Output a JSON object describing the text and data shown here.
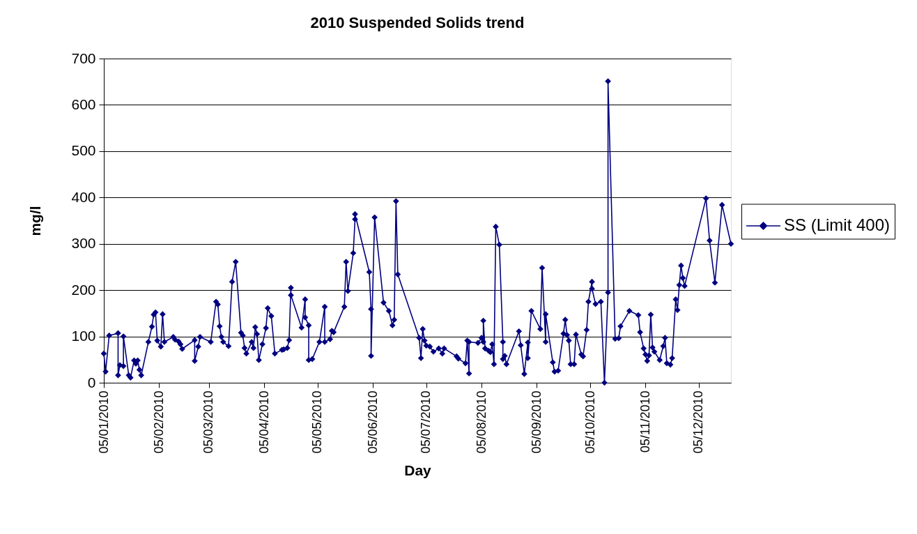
{
  "chart_data": {
    "type": "line",
    "title": "2010 Suspended Solids trend",
    "xlabel": "Day",
    "ylabel": "mg/l",
    "x": [
      "2010-01-05",
      "2010-01-06",
      "2010-01-08",
      "2010-01-13",
      "2010-01-13",
      "2010-01-14",
      "2010-01-16",
      "2010-01-16",
      "2010-01-19",
      "2010-01-20",
      "2010-01-22",
      "2010-01-23",
      "2010-01-24",
      "2010-01-25",
      "2010-01-26",
      "2010-01-30",
      "2010-02-01",
      "2010-02-02",
      "2010-02-03",
      "2010-02-04",
      "2010-02-06",
      "2010-02-07",
      "2010-02-08",
      "2010-02-13",
      "2010-02-14",
      "2010-02-16",
      "2010-02-17",
      "2010-02-18",
      "2010-02-25",
      "2010-02-25",
      "2010-02-27",
      "2010-02-28",
      "2010-03-06",
      "2010-03-09",
      "2010-03-10",
      "2010-03-11",
      "2010-03-12",
      "2010-03-13",
      "2010-03-16",
      "2010-03-18",
      "2010-03-20",
      "2010-03-23",
      "2010-03-24",
      "2010-03-25",
      "2010-03-26",
      "2010-03-29",
      "2010-03-30",
      "2010-03-31",
      "2010-04-01",
      "2010-04-02",
      "2010-04-04",
      "2010-04-06",
      "2010-04-07",
      "2010-04-09",
      "2010-04-11",
      "2010-04-15",
      "2010-04-16",
      "2010-04-18",
      "2010-04-19",
      "2010-04-20",
      "2010-04-20",
      "2010-04-26",
      "2010-04-28",
      "2010-04-28",
      "2010-04-30",
      "2010-04-30",
      "2010-05-02",
      "2010-05-06",
      "2010-05-09",
      "2010-05-09",
      "2010-05-12",
      "2010-05-13",
      "2010-05-14",
      "2010-05-20",
      "2010-05-21",
      "2010-05-22",
      "2010-05-25",
      "2010-05-26",
      "2010-05-26",
      "2010-06-03",
      "2010-06-04",
      "2010-06-04",
      "2010-06-06",
      "2010-06-11",
      "2010-06-14",
      "2010-06-16",
      "2010-06-17",
      "2010-06-18",
      "2010-06-19",
      "2010-07-01",
      "2010-07-02",
      "2010-07-03",
      "2010-07-04",
      "2010-07-05",
      "2010-07-07",
      "2010-07-09",
      "2010-07-12",
      "2010-07-14",
      "2010-07-15",
      "2010-07-22",
      "2010-07-23",
      "2010-07-27",
      "2010-07-28",
      "2010-07-29",
      "2010-07-29",
      "2010-08-03",
      "2010-08-05",
      "2010-08-06",
      "2010-08-06",
      "2010-08-07",
      "2010-08-09",
      "2010-08-10",
      "2010-08-11",
      "2010-08-12",
      "2010-08-13",
      "2010-08-15",
      "2010-08-17",
      "2010-08-17",
      "2010-08-18",
      "2010-08-19",
      "2010-08-26",
      "2010-08-27",
      "2010-08-29",
      "2010-08-31",
      "2010-08-31",
      "2010-09-02",
      "2010-09-07",
      "2010-09-08",
      "2010-09-10",
      "2010-09-10",
      "2010-09-14",
      "2010-09-15",
      "2010-09-17",
      "2010-09-20",
      "2010-09-21",
      "2010-09-22",
      "2010-09-23",
      "2010-09-24",
      "2010-09-26",
      "2010-09-27",
      "2010-09-30",
      "2010-10-01",
      "2010-10-03",
      "2010-10-04",
      "2010-10-06",
      "2010-10-06",
      "2010-10-08",
      "2010-10-11",
      "2010-10-13",
      "2010-10-15",
      "2010-10-15",
      "2010-10-19",
      "2010-10-21",
      "2010-10-22",
      "2010-10-27",
      "2010-11-01",
      "2010-11-02",
      "2010-11-04",
      "2010-11-05",
      "2010-11-06",
      "2010-11-07",
      "2010-11-08",
      "2010-11-09",
      "2010-11-10",
      "2010-11-13",
      "2010-11-15",
      "2010-11-16",
      "2010-11-17",
      "2010-11-19",
      "2010-11-20",
      "2010-11-22",
      "2010-11-23",
      "2010-11-24",
      "2010-11-25",
      "2010-11-26",
      "2010-11-27",
      "2010-12-09",
      "2010-12-11",
      "2010-12-14",
      "2010-12-18",
      "2010-12-23"
    ],
    "series": [
      {
        "name": "SS (Limit 400)",
        "color": "#000080",
        "values": [
          63,
          24,
          102,
          107,
          16,
          38,
          36,
          100,
          16,
          11,
          48,
          41,
          48,
          28,
          16,
          88,
          121,
          147,
          152,
          91,
          78,
          148,
          88,
          99,
          93,
          89,
          83,
          73,
          92,
          47,
          78,
          99,
          88,
          175,
          169,
          122,
          99,
          88,
          79,
          218,
          261,
          108,
          102,
          75,
          63,
          88,
          75,
          120,
          105,
          49,
          83,
          118,
          161,
          144,
          63,
          71,
          72,
          75,
          92,
          205,
          189,
          119,
          180,
          141,
          124,
          49,
          51,
          88,
          164,
          88,
          94,
          112,
          109,
          164,
          261,
          198,
          280,
          353,
          364,
          239,
          159,
          58,
          357,
          173,
          155,
          124,
          136,
          392,
          234,
          97,
          53,
          116,
          91,
          80,
          78,
          67,
          74,
          63,
          74,
          57,
          52,
          42,
          91,
          20,
          88,
          86,
          97,
          88,
          134,
          74,
          69,
          66,
          83,
          40,
          337,
          298,
          88,
          51,
          58,
          40,
          111,
          81,
          19,
          87,
          53,
          155,
          116,
          248,
          88,
          148,
          44,
          24,
          26,
          106,
          136,
          103,
          91,
          40,
          40,
          104,
          61,
          57,
          114,
          175,
          218,
          203,
          170,
          175,
          0,
          195,
          651,
          95,
          96,
          122,
          155,
          146,
          109,
          74,
          61,
          47,
          59,
          147,
          76,
          67,
          49,
          79,
          97,
          42,
          39,
          53,
          180,
          157,
          211,
          253,
          226,
          209,
          398,
          307,
          216,
          384,
          300
        ]
      }
    ],
    "xlim": [
      "2010-01-05",
      "2010-12-23"
    ],
    "xticks": [
      {
        "value": "2010-01-05",
        "label": "05/01/2010"
      },
      {
        "value": "2010-02-05",
        "label": "05/02/2010"
      },
      {
        "value": "2010-03-05",
        "label": "05/03/2010"
      },
      {
        "value": "2010-04-05",
        "label": "05/04/2010"
      },
      {
        "value": "2010-05-05",
        "label": "05/05/2010"
      },
      {
        "value": "2010-06-05",
        "label": "05/06/2010"
      },
      {
        "value": "2010-07-05",
        "label": "05/07/2010"
      },
      {
        "value": "2010-08-05",
        "label": "05/08/2010"
      },
      {
        "value": "2010-09-05",
        "label": "05/09/2010"
      },
      {
        "value": "2010-10-05",
        "label": "05/10/2010"
      },
      {
        "value": "2010-11-05",
        "label": "05/11/2010"
      },
      {
        "value": "2010-12-05",
        "label": "05/12/2010"
      }
    ],
    "ylim": [
      0,
      700
    ],
    "yticks": [
      0,
      100,
      200,
      300,
      400,
      500,
      600,
      700
    ],
    "grid": "y",
    "legend": "right",
    "marker": "diamond",
    "line_style": "solid"
  }
}
